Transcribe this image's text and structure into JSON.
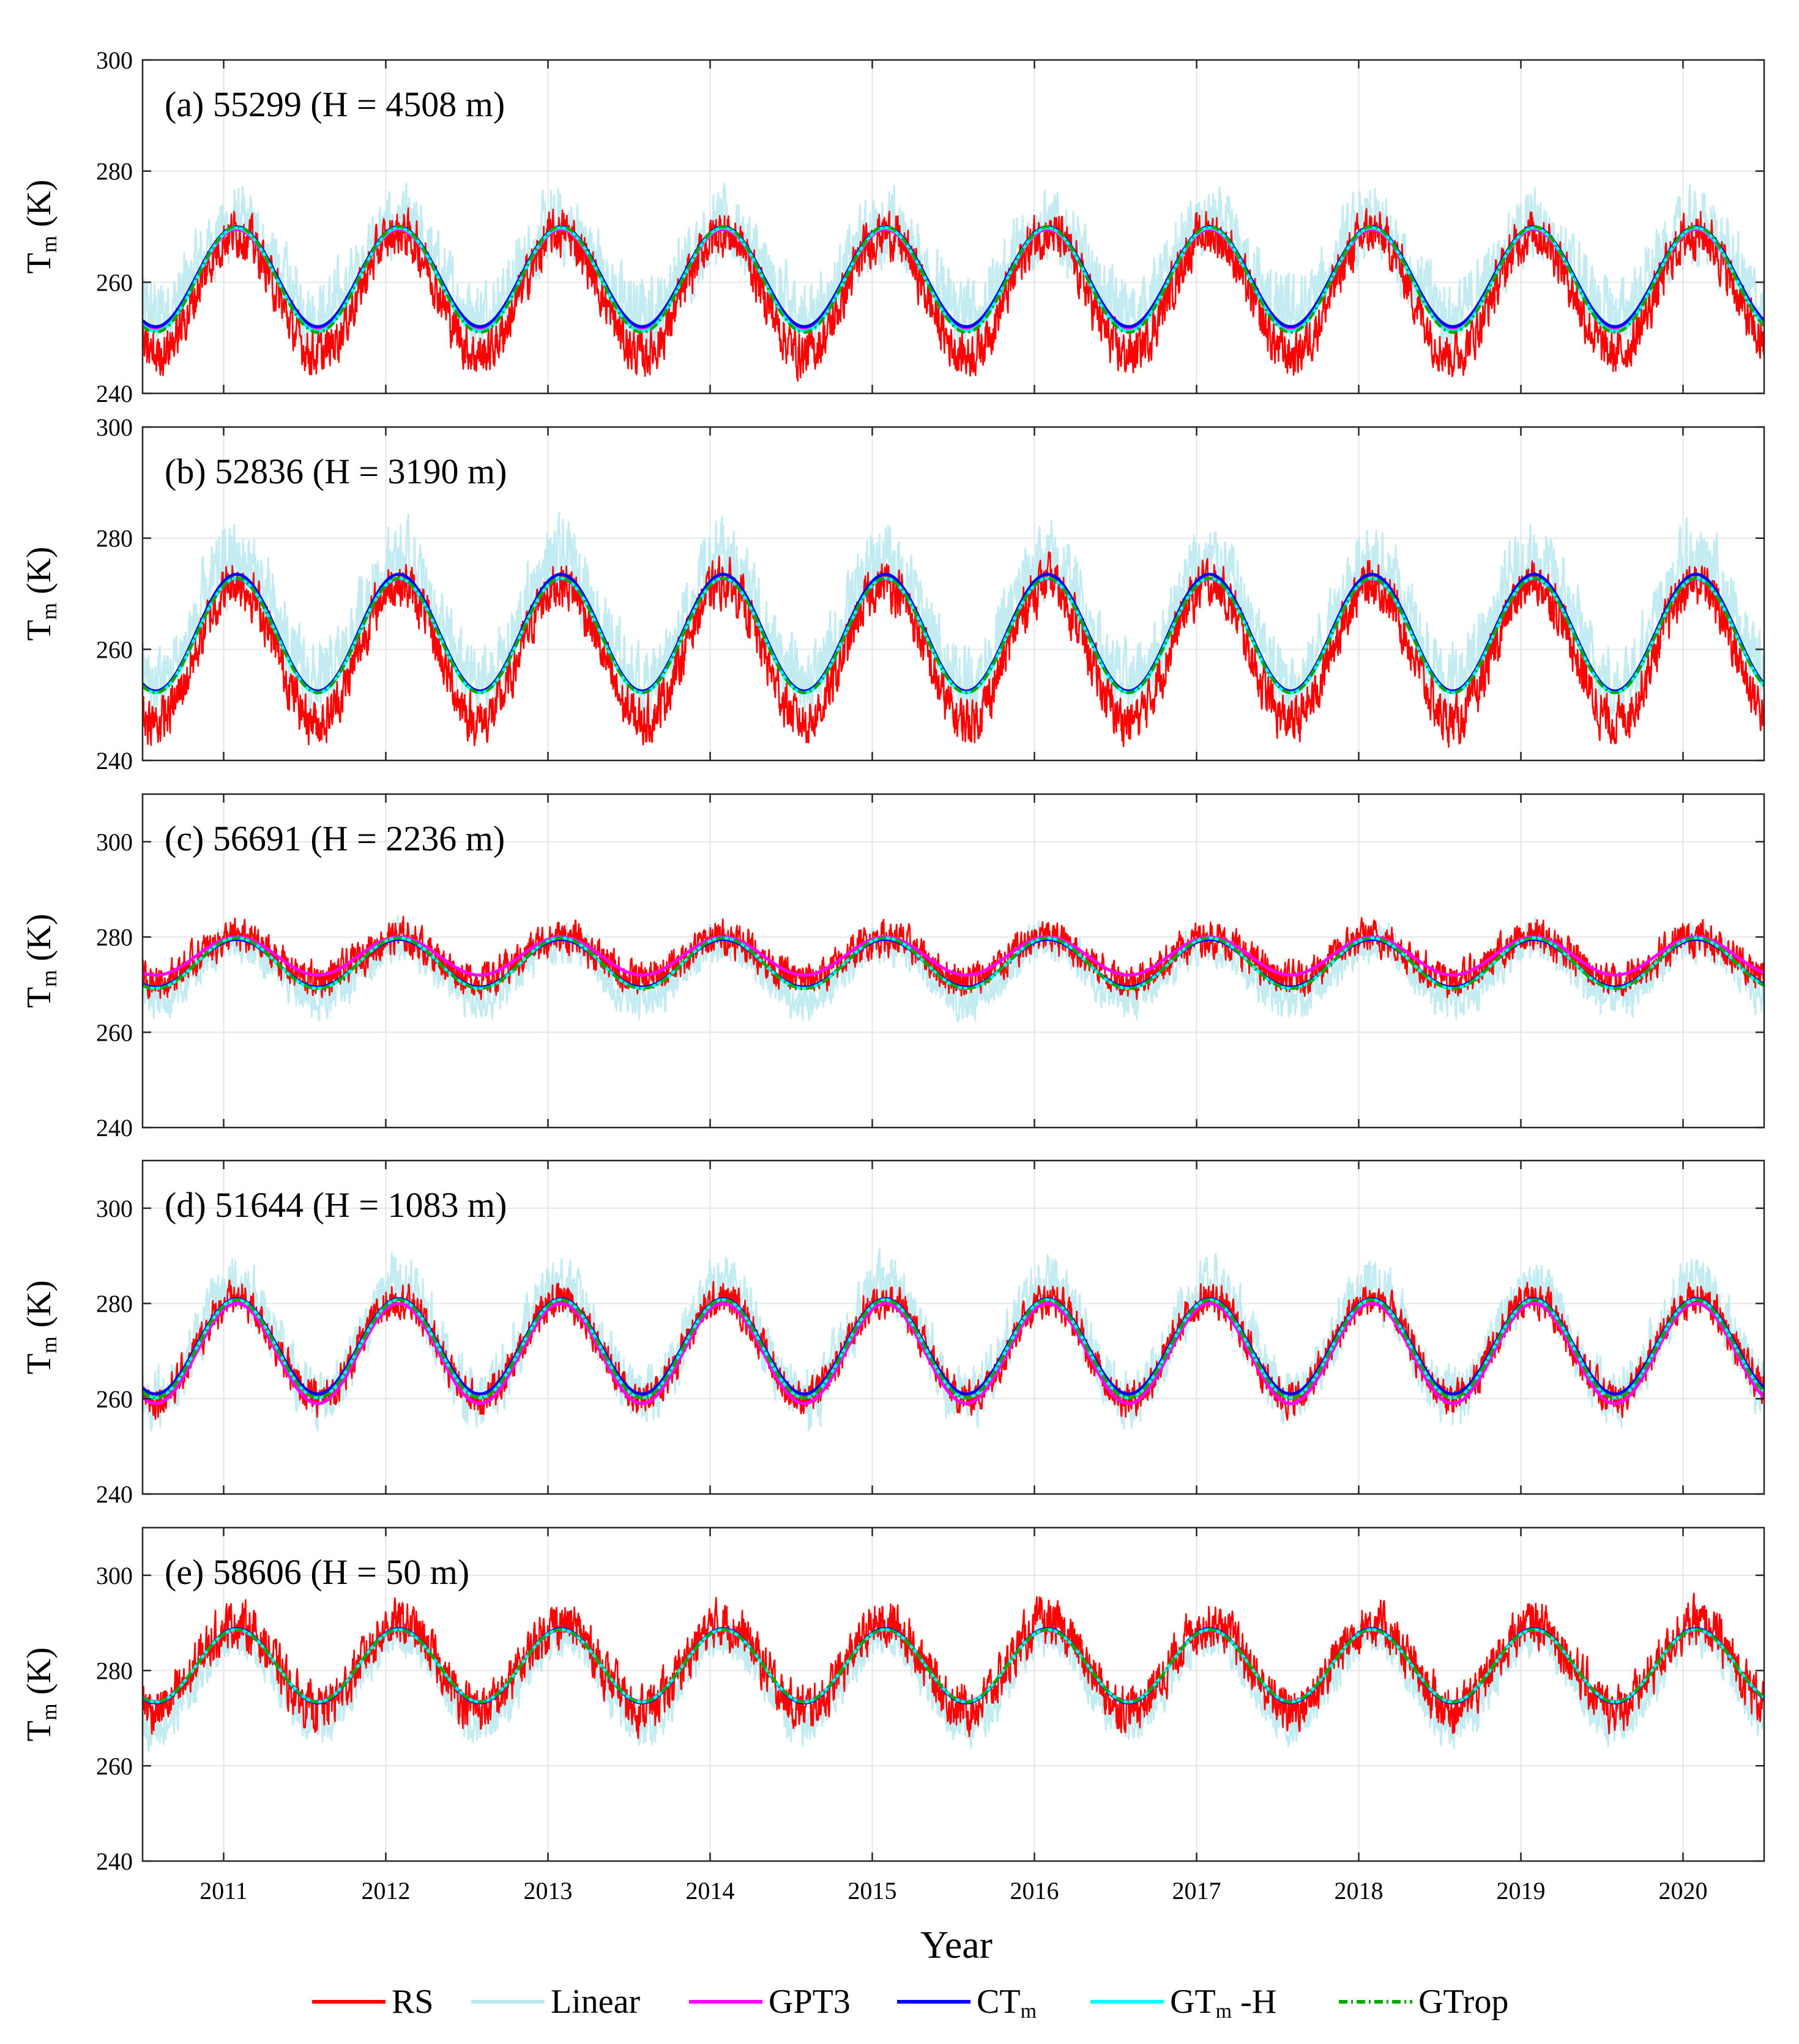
{
  "figure": {
    "xlabel": "Year",
    "x_ticks": [
      "2011",
      "2012",
      "2013",
      "2014",
      "2015",
      "2016",
      "2017",
      "2018",
      "2019",
      "2020"
    ],
    "x_tick_values": [
      2011,
      2012,
      2013,
      2014,
      2015,
      2016,
      2017,
      2018,
      2019,
      2020
    ],
    "xlim": [
      2010.5,
      2020.5
    ],
    "ylabel_main": "T",
    "ylabel_sub": "m",
    "ylabel_unit": " (K)"
  },
  "legend": [
    {
      "key": "RS",
      "label": "RS",
      "sub": "",
      "tail": "",
      "color": "#ff0000",
      "dash": "solid"
    },
    {
      "key": "Linear",
      "label": "Linear",
      "sub": "",
      "tail": "",
      "color": "#b7e9ee",
      "dash": "solid"
    },
    {
      "key": "GPT3",
      "label": "GPT3",
      "sub": "",
      "tail": "",
      "color": "#ff00ff",
      "dash": "solid"
    },
    {
      "key": "CTm",
      "label": "CT",
      "sub": "m",
      "tail": "",
      "color": "#0000ff",
      "dash": "solid"
    },
    {
      "key": "GTmH",
      "label": "GT",
      "sub": "m",
      "tail": " -H",
      "color": "#00ffff",
      "dash": "solid"
    },
    {
      "key": "GTrop",
      "label": "GTrop",
      "sub": "",
      "tail": "",
      "color": "#00aa00",
      "dash": "dashdot"
    }
  ],
  "chart_data": [
    {
      "type": "line",
      "panel_label": "(a) 55299 (H = 4508 m)",
      "station": "55299",
      "height_m": 4508,
      "ylim": [
        240,
        300
      ],
      "yticks": [
        "240",
        "260",
        "280",
        "300"
      ],
      "ytick_values": [
        240,
        260,
        280,
        300
      ],
      "series": [
        {
          "name": "RS",
          "mean": 258,
          "amp": 11,
          "noise": 3.5
        },
        {
          "name": "Linear",
          "mean": 262,
          "amp": 8,
          "noise": 5.5
        },
        {
          "name": "GPT3",
          "mean": 260.5,
          "amp": 9
        },
        {
          "name": "CTm",
          "mean": 261,
          "amp": 9
        },
        {
          "name": "GTm-H",
          "mean": 260.5,
          "amp": 9.3
        },
        {
          "name": "GTrop",
          "mean": 260.5,
          "amp": 9.5
        }
      ]
    },
    {
      "type": "line",
      "panel_label": "(b) 52836 (H = 3190 m)",
      "station": "52836",
      "height_m": 3190,
      "ylim": [
        240,
        300
      ],
      "yticks": [
        "240",
        "260",
        "280",
        "300"
      ],
      "ytick_values": [
        240,
        260,
        280,
        300
      ],
      "series": [
        {
          "name": "RS",
          "mean": 259.5,
          "amp": 12.5,
          "noise": 3.5
        },
        {
          "name": "Linear",
          "mean": 265,
          "amp": 11,
          "noise": 5.5
        },
        {
          "name": "GPT3",
          "mean": 262.5,
          "amp": 10.2
        },
        {
          "name": "CTm",
          "mean": 263,
          "amp": 10.5
        },
        {
          "name": "GTm-H",
          "mean": 262.5,
          "amp": 10.3
        },
        {
          "name": "GTrop",
          "mean": 262.5,
          "amp": 10.3
        }
      ]
    },
    {
      "type": "line",
      "panel_label": "(c) 56691 (H = 2236 m)",
      "station": "56691",
      "height_m": 2236,
      "ylim": [
        240,
        310
      ],
      "yticks": [
        "240",
        "260",
        "280",
        "300"
      ],
      "ytick_values": [
        240,
        260,
        280,
        300
      ],
      "series": [
        {
          "name": "RS",
          "mean": 275.5,
          "amp": 4.5,
          "noise": 3
        },
        {
          "name": "Linear",
          "mean": 273,
          "amp": 6,
          "noise": 3.5
        },
        {
          "name": "GPT3",
          "mean": 276,
          "amp": 4
        },
        {
          "name": "CTm",
          "mean": 274.5,
          "amp": 5
        },
        {
          "name": "GTm-H",
          "mean": 274.5,
          "amp": 5.3
        },
        {
          "name": "GTrop",
          "mean": 274.5,
          "amp": 5.3
        }
      ]
    },
    {
      "type": "line",
      "panel_label": "(d) 51644 (H = 1083 m)",
      "station": "51644",
      "height_m": 1083,
      "ylim": [
        240,
        310
      ],
      "yticks": [
        "240",
        "260",
        "280",
        "300"
      ],
      "ytick_values": [
        240,
        260,
        280,
        300
      ],
      "series": [
        {
          "name": "RS",
          "mean": 270.5,
          "amp": 10.5,
          "noise": 3
        },
        {
          "name": "Linear",
          "mean": 272,
          "amp": 12,
          "noise": 5
        },
        {
          "name": "GPT3",
          "mean": 269.5,
          "amp": 10.5
        },
        {
          "name": "CTm",
          "mean": 271,
          "amp": 10
        },
        {
          "name": "GTm-H",
          "mean": 270.5,
          "amp": 10.3
        },
        {
          "name": "GTrop",
          "mean": 270.5,
          "amp": 10.3
        }
      ]
    },
    {
      "type": "line",
      "panel_label": "(e) 58606 (H = 50 m)",
      "station": "58606",
      "height_m": 50,
      "ylim": [
        240,
        310
      ],
      "yticks": [
        "240",
        "260",
        "280",
        "300"
      ],
      "ytick_values": [
        240,
        260,
        280,
        300
      ],
      "series": [
        {
          "name": "RS",
          "mean": 281,
          "amp": 9,
          "noise": 4
        },
        {
          "name": "Linear",
          "mean": 278,
          "amp": 9.5,
          "noise": 3.5
        },
        {
          "name": "GPT3",
          "mean": 281,
          "amp": 7.5
        },
        {
          "name": "CTm",
          "mean": 281,
          "amp": 7.8
        },
        {
          "name": "GTm-H",
          "mean": 281,
          "amp": 7.6
        },
        {
          "name": "GTrop",
          "mean": 281,
          "amp": 7.6
        }
      ]
    }
  ]
}
